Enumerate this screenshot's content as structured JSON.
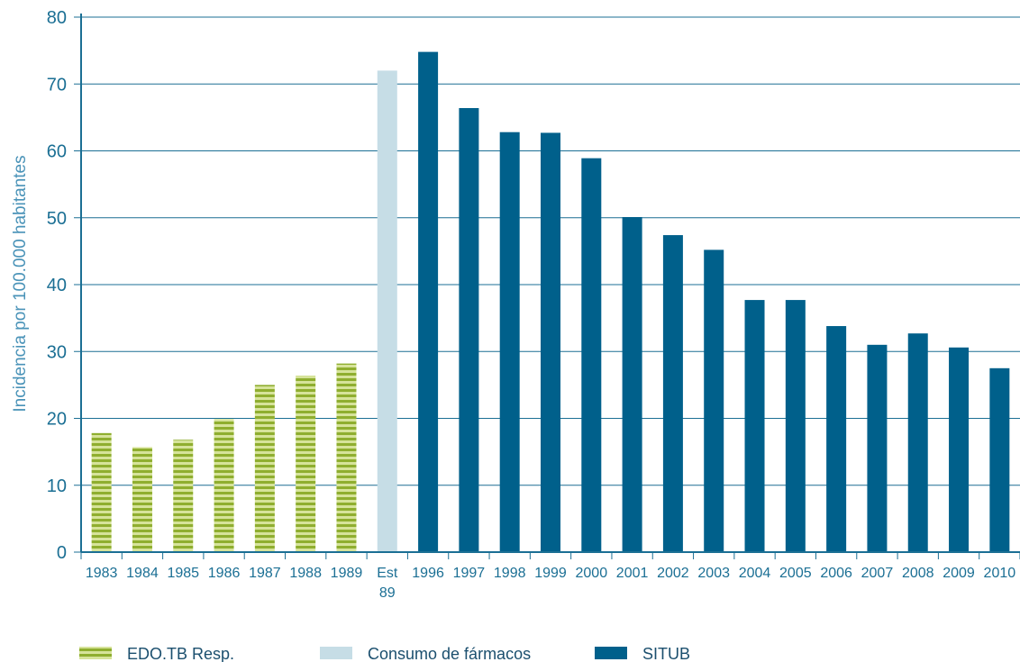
{
  "chart_data": {
    "type": "bar",
    "ylabel": "Incidencia por 100.000 habitantes",
    "xlabel": "",
    "ylim": [
      0,
      80
    ],
    "yticks": [
      0,
      10,
      20,
      30,
      40,
      50,
      60,
      70,
      80
    ],
    "grid": true,
    "legend_position": "bottom",
    "categories": [
      [
        "1983"
      ],
      [
        "1984"
      ],
      [
        "1985"
      ],
      [
        "1986"
      ],
      [
        "1987"
      ],
      [
        "1988"
      ],
      [
        "1989"
      ],
      [
        "Est",
        "89"
      ],
      [
        "1996"
      ],
      [
        "1997"
      ],
      [
        "1998"
      ],
      [
        "1999"
      ],
      [
        "2000"
      ],
      [
        "2001"
      ],
      [
        "2002"
      ],
      [
        "2003"
      ],
      [
        "2004"
      ],
      [
        "2005"
      ],
      [
        "2006"
      ],
      [
        "2007"
      ],
      [
        "2008"
      ],
      [
        "2009"
      ],
      [
        "2010"
      ]
    ],
    "series": [
      {
        "name": "EDO.TB Resp.",
        "color": "#8fae2f",
        "pattern": "horizontal-stripes",
        "values": [
          17.8,
          15.7,
          16.8,
          19.9,
          25.0,
          26.4,
          28.2,
          null,
          null,
          null,
          null,
          null,
          null,
          null,
          null,
          null,
          null,
          null,
          null,
          null,
          null,
          null,
          null
        ]
      },
      {
        "name": "Consumo de fármacos",
        "color": "#c6dde6",
        "values": [
          null,
          null,
          null,
          null,
          null,
          null,
          null,
          72.0,
          null,
          null,
          null,
          null,
          null,
          null,
          null,
          null,
          null,
          null,
          null,
          null,
          null,
          null,
          null
        ]
      },
      {
        "name": "SITUB",
        "color": "#00608b",
        "values": [
          null,
          null,
          null,
          null,
          null,
          null,
          null,
          null,
          74.8,
          66.4,
          62.8,
          62.7,
          58.9,
          50.1,
          47.4,
          45.2,
          37.7,
          37.7,
          33.8,
          31.0,
          32.7,
          30.6,
          27.5
        ]
      }
    ]
  }
}
